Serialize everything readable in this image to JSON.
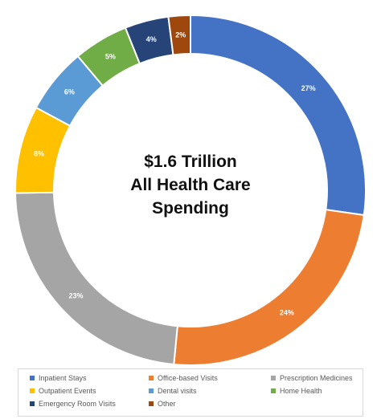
{
  "chart_data": {
    "type": "pie",
    "donut": true,
    "center_text": [
      "$1.6 Trillion",
      "All Health Care",
      "Spending"
    ],
    "categories": [
      "Inpatient Stays",
      "Office-based Visits",
      "Prescription Medicines",
      "Outpatient Events",
      "Dental visits",
      "Home Health",
      "Emergency Room Visits",
      "Other"
    ],
    "values": [
      27,
      24,
      23,
      8,
      6,
      5,
      4,
      2
    ],
    "labels": [
      "27%",
      "24%",
      "23%",
      "8%",
      "6%",
      "5%",
      "4%",
      "2%"
    ],
    "colors": [
      "#4472C4",
      "#ED7D31",
      "#A5A5A5",
      "#FFC000",
      "#5B9BD5",
      "#70AD47",
      "#264478",
      "#9E480E"
    ],
    "label_colors": [
      "#ffffff",
      "#ffffff",
      "#ffffff",
      "#ffffff",
      "#ffffff",
      "#ffffff",
      "#ffffff",
      "#ffffff"
    ],
    "legend_position": "bottom"
  }
}
